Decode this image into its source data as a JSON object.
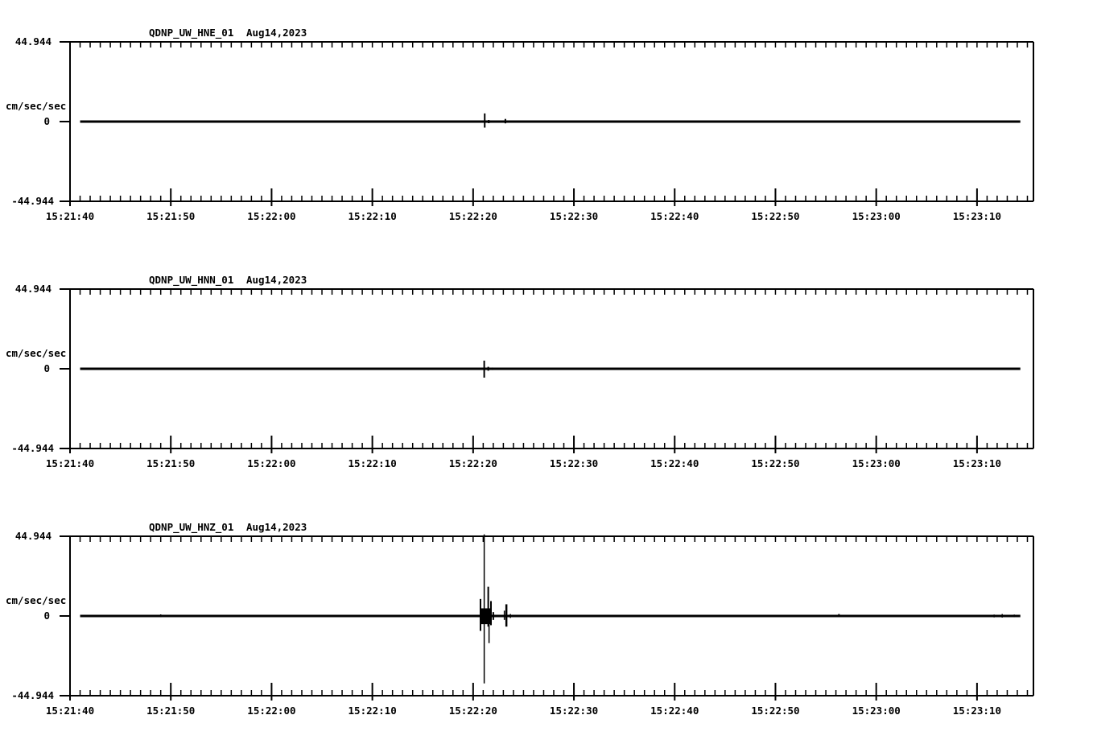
{
  "page": {
    "background": "#ffffff",
    "ink_color": "#000000",
    "description": "Three-panel seismogram strip chart for station QDNP (UW network), channels HNE/HNN/HNZ"
  },
  "chart_data": [
    {
      "type": "line",
      "station_title": "QDNP_UW_HNE_01",
      "date_label": "Aug14,2023",
      "y_axis": {
        "unit_label": "cm/sec/sec",
        "max_label": "44.944",
        "zero_label": "0",
        "min_label": "-44.944",
        "ylim": [
          -44.944,
          44.944
        ]
      },
      "x_axis": {
        "start_time": "15:21:40",
        "tick_labels": [
          "15:21:40",
          "15:21:50",
          "15:22:00",
          "15:22:10",
          "15:22:20",
          "15:22:30",
          "15:22:40",
          "15:22:50",
          "15:23:00",
          "15:23:10"
        ],
        "tick_seconds": [
          0,
          10,
          20,
          30,
          40,
          50,
          60,
          70,
          80,
          90
        ],
        "minor_tick_interval_s": 1,
        "range_seconds": [
          0,
          95.6
        ],
        "grid": false
      },
      "trace": {
        "baseline_value": 0,
        "span_seconds": [
          1.0,
          94.3
        ],
        "spikes": [
          {
            "t": 41.15,
            "up": 4.6,
            "down": 3.4,
            "w": 2
          },
          {
            "t": 41.55,
            "up": 0.9,
            "down": 0.9,
            "w": 2
          },
          {
            "t": 43.2,
            "up": 1.5,
            "down": 1.0,
            "w": 2
          },
          {
            "t": 60.9,
            "up": 0.4,
            "down": 0.2,
            "w": 1.5
          },
          {
            "t": 68.3,
            "up": 0.5,
            "down": 0.2,
            "w": 1.5
          }
        ]
      }
    },
    {
      "type": "line",
      "station_title": "QDNP_UW_HNN_01",
      "date_label": "Aug14,2023",
      "y_axis": {
        "unit_label": "cm/sec/sec",
        "max_label": "44.944",
        "zero_label": "0",
        "min_label": "-44.944",
        "ylim": [
          -44.944,
          44.944
        ]
      },
      "x_axis": {
        "start_time": "15:21:40",
        "tick_labels": [
          "15:21:40",
          "15:21:50",
          "15:22:00",
          "15:22:10",
          "15:22:20",
          "15:22:30",
          "15:22:40",
          "15:22:50",
          "15:23:00",
          "15:23:10"
        ],
        "tick_seconds": [
          0,
          10,
          20,
          30,
          40,
          50,
          60,
          70,
          80,
          90
        ],
        "minor_tick_interval_s": 1,
        "range_seconds": [
          0,
          95.6
        ],
        "grid": false
      },
      "trace": {
        "baseline_value": 0,
        "span_seconds": [
          1.0,
          94.3
        ],
        "spikes": [
          {
            "t": 41.1,
            "up": 4.6,
            "down": 5.0,
            "w": 2
          },
          {
            "t": 41.5,
            "up": 1.1,
            "down": 1.1,
            "w": 2
          },
          {
            "t": 41.9,
            "up": 0.7,
            "down": 0.7,
            "w": 1.5
          },
          {
            "t": 87.0,
            "up": 0.3,
            "down": 0.1,
            "w": 1.5
          },
          {
            "t": 89.0,
            "up": 0.3,
            "down": 0.1,
            "w": 1.5
          }
        ]
      }
    },
    {
      "type": "line",
      "station_title": "QDNP_UW_HNZ_01",
      "date_label": "Aug14,2023",
      "y_axis": {
        "unit_label": "cm/sec/sec",
        "max_label": "44.944",
        "zero_label": "0",
        "min_label": "-44.944",
        "ylim": [
          -44.944,
          44.944
        ]
      },
      "x_axis": {
        "start_time": "15:21:40",
        "tick_labels": [
          "15:21:40",
          "15:21:50",
          "15:22:00",
          "15:22:10",
          "15:22:20",
          "15:22:30",
          "15:22:40",
          "15:22:50",
          "15:23:00",
          "15:23:10"
        ],
        "tick_seconds": [
          0,
          10,
          20,
          30,
          40,
          50,
          60,
          70,
          80,
          90
        ],
        "minor_tick_interval_s": 1,
        "range_seconds": [
          0,
          95.6
        ],
        "grid": false
      },
      "trace": {
        "baseline_value": 0,
        "span_seconds": [
          1.0,
          94.3
        ],
        "spikes": [
          {
            "t": 9.0,
            "up": 0.9,
            "down": 0.7,
            "w": 1.5
          },
          {
            "t": 40.73,
            "up": 9.6,
            "down": 8.4,
            "w": 2
          },
          {
            "t": 41.1,
            "up": 46.0,
            "down": 38.0,
            "w": 1.5
          },
          {
            "t": 41.25,
            "up": 4.3,
            "down": 4.6,
            "w": 13
          },
          {
            "t": 41.5,
            "up": 16.5,
            "down": 6.0,
            "w": 2
          },
          {
            "t": 41.58,
            "up": 3.0,
            "down": 15.3,
            "w": 1.5
          },
          {
            "t": 41.77,
            "up": 8.4,
            "down": 5.2,
            "w": 2
          },
          {
            "t": 42.0,
            "up": 2.2,
            "down": 2.2,
            "w": 2
          },
          {
            "t": 43.1,
            "up": 3.0,
            "down": 2.2,
            "w": 1.5
          },
          {
            "t": 43.3,
            "up": 6.6,
            "down": 6.0,
            "w": 2.5
          },
          {
            "t": 43.7,
            "up": 1.1,
            "down": 1.1,
            "w": 1.5
          },
          {
            "t": 44.6,
            "up": 0.6,
            "down": 0.4,
            "w": 1.5
          },
          {
            "t": 76.3,
            "up": 1.1,
            "down": 0.6,
            "w": 2
          },
          {
            "t": 78.9,
            "up": 0.3,
            "down": 0.3,
            "w": 1.5
          },
          {
            "t": 91.1,
            "up": 0.6,
            "down": 0.6,
            "w": 1.5
          },
          {
            "t": 91.7,
            "up": 0.8,
            "down": 0.8,
            "w": 1.5
          },
          {
            "t": 92.1,
            "up": 0.4,
            "down": 0.4,
            "w": 1.5
          },
          {
            "t": 92.5,
            "up": 1.1,
            "down": 0.9,
            "w": 1.5
          },
          {
            "t": 92.8,
            "up": 0.6,
            "down": 0.6,
            "w": 1.5
          },
          {
            "t": 93.2,
            "up": 0.4,
            "down": 0.3,
            "w": 1.5
          },
          {
            "t": 93.7,
            "up": 0.8,
            "down": 0.7,
            "w": 1.5
          },
          {
            "t": 94.1,
            "up": 0.4,
            "down": 0.3,
            "w": 1.5
          }
        ]
      }
    }
  ]
}
